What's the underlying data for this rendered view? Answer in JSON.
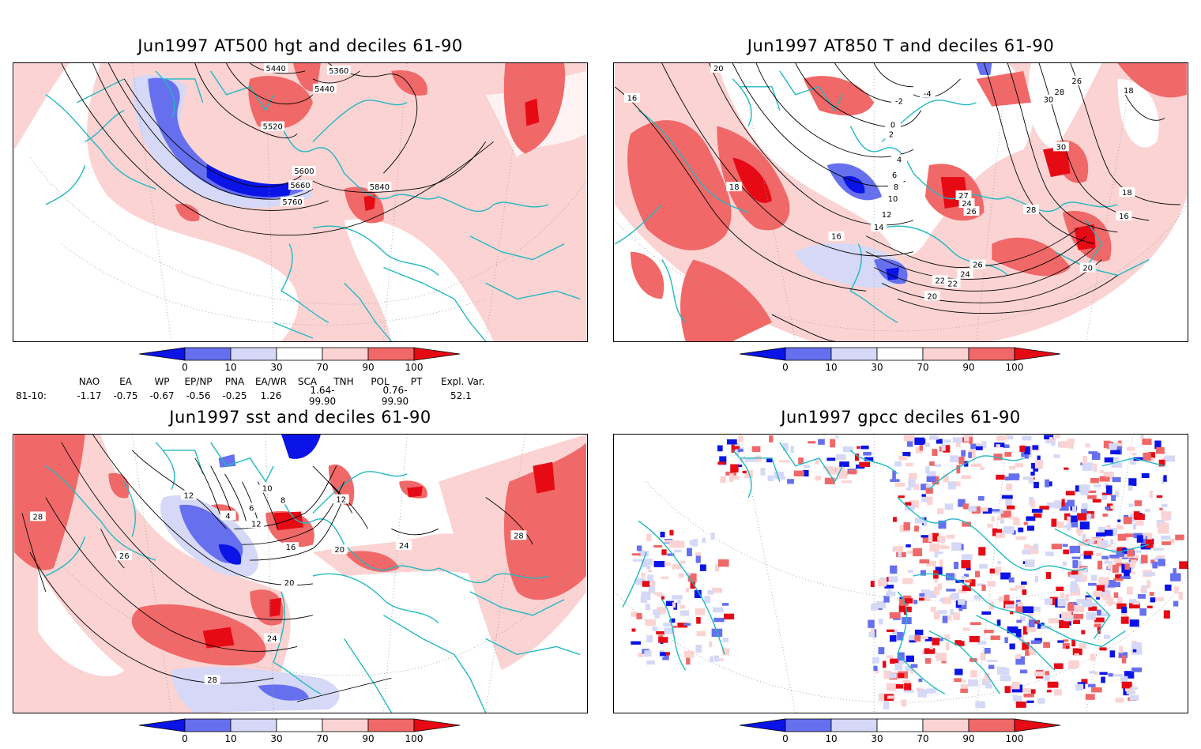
{
  "panels": [
    {
      "id": "hgt500",
      "title": "Jun1997 AT500 hgt and deciles 61-90",
      "contour_labels": [
        "5440",
        "5360",
        "5440",
        "5520",
        "5600",
        "5660",
        "5760",
        "5840"
      ]
    },
    {
      "id": "t850",
      "title": "Jun1997 AT850 T and deciles 61-90",
      "contour_labels": [
        "20",
        "16",
        "-4",
        "-2",
        "0",
        "2",
        "4",
        "6",
        "8",
        "10",
        "12",
        "14",
        "16",
        "18",
        "20",
        "22",
        "24",
        "26",
        "28",
        "30",
        "18",
        "16",
        "18",
        "20",
        "26",
        "28",
        "30",
        "22",
        "27",
        "24",
        "26"
      ]
    },
    {
      "id": "sst",
      "title": "Jun1997 sst and deciles 61-90",
      "contour_labels": [
        "12",
        "4",
        "6",
        "8",
        "10",
        "12",
        "16",
        "20",
        "24",
        "28",
        "26",
        "28",
        "24",
        "20",
        "12",
        "28"
      ]
    },
    {
      "id": "gpcc",
      "title": "Jun1997 gpcc deciles 61-90",
      "contour_labels": []
    }
  ],
  "colorbar": {
    "ticks": [
      "0",
      "10",
      "30",
      "70",
      "90",
      "100"
    ],
    "colors": [
      "#0a14e6",
      "#6670ee",
      "#d5d8f6",
      "#ffffff",
      "#fbd3d3",
      "#f06868",
      "#e60a14"
    ]
  },
  "indices": {
    "headers": [
      "NAO",
      "EA",
      "WP",
      "EP/NP",
      "PNA",
      "EA/WR",
      "SCA",
      "TNH",
      "POL",
      "PT",
      "Expl. Var."
    ],
    "row_label": "81-10:",
    "values": [
      "-1.17",
      "-0.75",
      "-0.67",
      "-0.56",
      "-0.25",
      "1.26",
      "1.64-99.90",
      "",
      "0.76-99.90",
      "",
      "52.1"
    ]
  }
}
